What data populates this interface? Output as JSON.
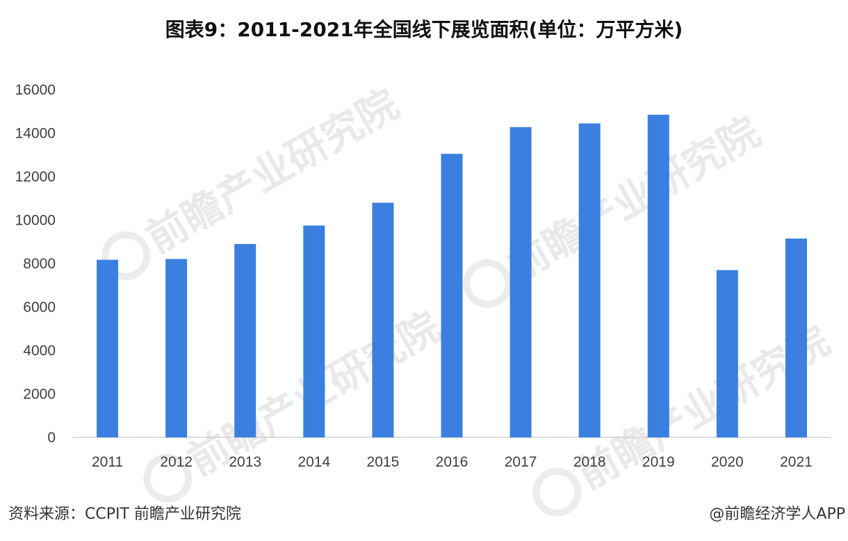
{
  "chart_data": {
    "type": "bar",
    "title": "图表9：2011-2021年全国线下展览面积(单位：万平方米)",
    "categories": [
      "2011",
      "2012",
      "2013",
      "2014",
      "2015",
      "2016",
      "2017",
      "2018",
      "2019",
      "2020",
      "2021"
    ],
    "values": [
      8173,
      8210,
      8900,
      9750,
      10800,
      13050,
      14280,
      14450,
      14850,
      7700,
      9150
    ],
    "xlabel": "",
    "ylabel": "",
    "ylim": [
      0,
      16000
    ],
    "yticks": [
      "0",
      "2000",
      "4000",
      "6000",
      "8000",
      "10000",
      "12000",
      "14000",
      "16000"
    ],
    "grid": false,
    "legend": "none",
    "bar_color": "#3b80e0"
  },
  "footer": {
    "source": "资料来源：CCPIT 前瞻产业研究院",
    "credit": "@前瞻经济学人APP"
  },
  "watermark": {
    "text": "前瞻产业研究院"
  }
}
